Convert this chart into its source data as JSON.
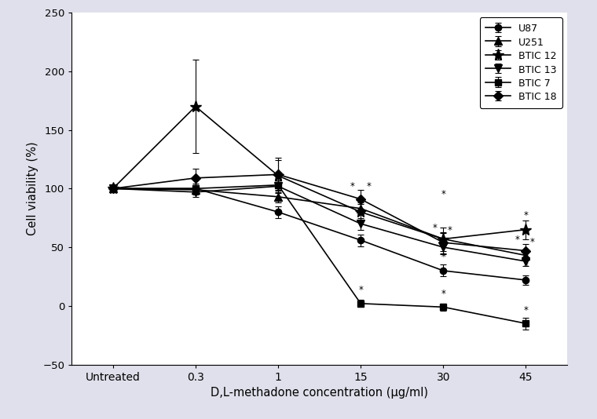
{
  "x_positions": [
    0,
    1,
    2,
    3,
    4,
    5
  ],
  "x_labels": [
    "Untreated",
    "0.3",
    "1",
    "15",
    "30",
    "45"
  ],
  "series": [
    {
      "name": "U87",
      "marker": "o",
      "y": [
        100,
        100,
        80,
        56,
        30,
        22
      ],
      "yerr": [
        0,
        4,
        5,
        5,
        5,
        4
      ]
    },
    {
      "name": "U251",
      "marker": "^",
      "y": [
        100,
        99,
        93,
        83,
        57,
        43
      ],
      "yerr": [
        0,
        4,
        5,
        5,
        5,
        4
      ]
    },
    {
      "name": "BTIC 12",
      "marker": "*",
      "y": [
        100,
        170,
        111,
        80,
        57,
        65
      ],
      "yerr": [
        0,
        40,
        15,
        7,
        10,
        8
      ]
    },
    {
      "name": "BTIC 13",
      "marker": "v",
      "y": [
        100,
        97,
        102,
        70,
        50,
        38
      ],
      "yerr": [
        0,
        4,
        5,
        5,
        6,
        4
      ]
    },
    {
      "name": "BTIC 7",
      "marker": "s",
      "y": [
        100,
        100,
        103,
        2,
        -1,
        -15
      ],
      "yerr": [
        0,
        3,
        4,
        3,
        3,
        5
      ]
    },
    {
      "name": "BTIC 18",
      "marker": "D",
      "y": [
        100,
        109,
        112,
        91,
        54,
        47
      ],
      "yerr": [
        0,
        8,
        12,
        8,
        9,
        6
      ]
    }
  ],
  "ylim": [
    -50,
    250
  ],
  "yticks": [
    -50,
    0,
    50,
    100,
    150,
    200,
    250
  ],
  "xlabel": "D,L-methadone concentration (μg/ml)",
  "ylabel": "Cell viability (%)",
  "background_color": "#dfe0eb",
  "plot_bg_color": "#ffffff",
  "figsize": [
    7.6,
    5.34
  ],
  "dpi": 100,
  "stars": [
    {
      "xi": 3,
      "y": 98,
      "xoff": -0.07
    },
    {
      "xi": 3,
      "y": 98,
      "xoff": 0.07
    },
    {
      "xi": 3,
      "y": 77,
      "xoff": -0.07
    },
    {
      "xi": 3,
      "y": 77,
      "xoff": 0.07
    },
    {
      "xi": 3,
      "y": 10,
      "xoff": 0.0
    },
    {
      "xi": 4,
      "y": 93,
      "xoff": 0.0
    },
    {
      "xi": 4,
      "y": 65,
      "xoff": -0.07
    },
    {
      "xi": 4,
      "y": 65,
      "xoff": 0.07
    },
    {
      "xi": 4,
      "y": 38,
      "xoff": -0.07
    },
    {
      "xi": 4,
      "y": 38,
      "xoff": 0.07
    },
    {
      "xi": 4,
      "y": 7,
      "xoff": 0.0
    },
    {
      "xi": 5,
      "y": 73,
      "xoff": 0.0
    },
    {
      "xi": 5,
      "y": 53,
      "xoff": -0.07
    },
    {
      "xi": 5,
      "y": 53,
      "xoff": 0.07
    },
    {
      "xi": 5,
      "y": 28,
      "xoff": -0.07
    },
    {
      "xi": 5,
      "y": 28,
      "xoff": 0.07
    },
    {
      "xi": 5,
      "y": -8,
      "xoff": 0.0
    }
  ]
}
